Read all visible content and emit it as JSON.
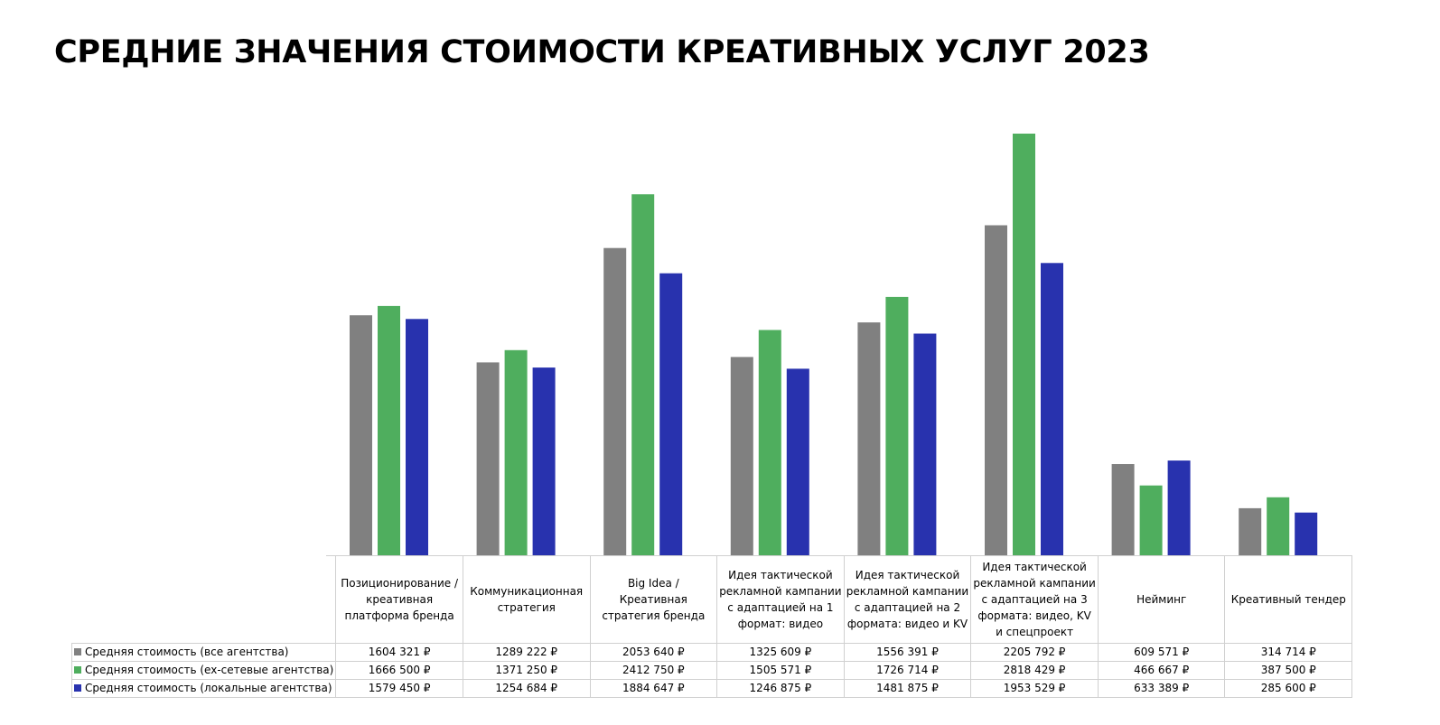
{
  "page_title": "СРЕДНИЕ ЗНАЧЕНИЯ СТОИМОСТИ КРЕАТИВНЫХ УСЛУГ 2023",
  "chart_data": {
    "type": "bar",
    "title": "СРЕДНИЕ ЗНАЧЕНИЯ СТОИМОСТИ КРЕАТИВНЫХ УСЛУГ 2023",
    "categories": [
      "Позиционирование / креативная платформа бренда",
      "Коммуникационная стратегия",
      "Big Idea / Креативная стратегия бренда",
      "Идея тактической рекламной кампании с адаптацией на 1 формат: видео",
      "Идея тактической рекламной кампании с адаптацией на 2 формата: видео и KV",
      "Идея тактической рекламной кампании с адаптацией на 3 формата: видео, KV и спецпроект",
      "Нейминг",
      "Креативный тендер"
    ],
    "series": [
      {
        "name": "Средняя стоимость (все агентства)",
        "color": "#808080",
        "values": [
          1604321,
          1289222,
          2053640,
          1325609,
          1556391,
          2205792,
          609571,
          314714
        ],
        "labels": [
          "1604 321 ₽",
          "1289 222 ₽",
          "2053 640 ₽",
          "1325 609 ₽",
          "1556 391 ₽",
          "2205 792 ₽",
          "609 571 ₽",
          "314 714 ₽"
        ]
      },
      {
        "name": "Средняя стоимость (ex-сетевые агентства)",
        "color": "#4fae5e",
        "values": [
          1666500,
          1371250,
          2412750,
          1505571,
          1726714,
          2818429,
          466667,
          387500
        ],
        "labels": [
          "1666 500 ₽",
          "1371 250 ₽",
          "2412 750 ₽",
          "1505 571 ₽",
          "1726 714 ₽",
          "2818 429 ₽",
          "466 667 ₽",
          "387 500 ₽"
        ]
      },
      {
        "name": "Средняя стоимость (локальные агентства)",
        "color": "#2832ae",
        "values": [
          1579450,
          1254684,
          1884647,
          1246875,
          1481875,
          1953529,
          633389,
          285600
        ],
        "labels": [
          "1579 450 ₽",
          "1254 684 ₽",
          "1884 647 ₽",
          "1246 875 ₽",
          "1481 875 ₽",
          "1953 529 ₽",
          "633 389 ₽",
          "285 600 ₽"
        ]
      }
    ],
    "ylim": [
      0,
      2818429
    ],
    "grid": false,
    "legend": "data table below chart"
  }
}
